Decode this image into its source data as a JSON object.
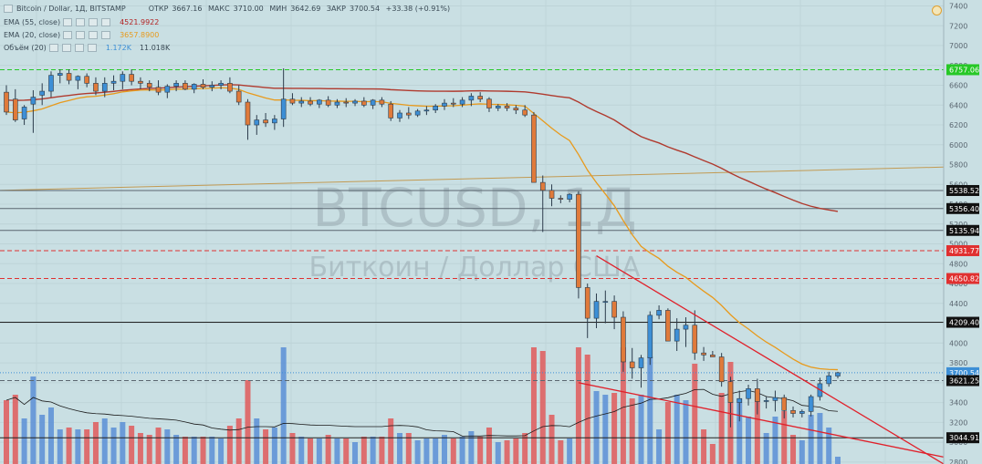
{
  "header": {
    "symbol": "Bitcoin / Dollar, 1Д, BITSTAMP",
    "open_label": "ОТКР",
    "open": "3667.16",
    "high_label": "МАКС",
    "high": "3710.00",
    "low_label": "МИН",
    "low": "3642.69",
    "close_label": "ЗАКР",
    "close": "3700.54",
    "change": "+33.38 (+0.91%)"
  },
  "indicators": [
    {
      "label": "EMA (55, close)",
      "value": "4521.9922",
      "color": "#b22222"
    },
    {
      "label": "EMA (20, close)",
      "value": "3657.8900",
      "color": "#e89a1c"
    },
    {
      "label": "Объём (20)",
      "value": "1.172K",
      "value2": "11.018K",
      "color": "#3d8fd6"
    }
  ],
  "watermark": {
    "ticker": "BTCUSD, 1Д",
    "name": "Биткоин / Доллар США"
  },
  "chart_data": {
    "type": "candlestick",
    "y_axis": {
      "ticks": [
        7400,
        7200,
        7000,
        6800,
        6600,
        6400,
        6200,
        6000,
        5800,
        5600,
        5400,
        5200,
        5000,
        4800,
        4600,
        4400,
        4200,
        4000,
        3800,
        3600,
        3400,
        3200,
        3000,
        2800
      ],
      "range": [
        2780,
        7460
      ]
    },
    "series": [
      {
        "name": "BTCUSD",
        "ohlc": [
          [
            6530,
            6600,
            6300,
            6330
          ],
          [
            6460,
            6560,
            6230,
            6250
          ],
          [
            6260,
            6400,
            6200,
            6380
          ],
          [
            6410,
            6550,
            6120,
            6480
          ],
          [
            6500,
            6620,
            6400,
            6540
          ],
          [
            6540,
            6740,
            6480,
            6700
          ],
          [
            6700,
            6760,
            6620,
            6720
          ],
          [
            6720,
            6760,
            6610,
            6650
          ],
          [
            6650,
            6700,
            6560,
            6690
          ],
          [
            6690,
            6720,
            6580,
            6620
          ],
          [
            6620,
            6680,
            6500,
            6540
          ],
          [
            6540,
            6680,
            6480,
            6620
          ],
          [
            6620,
            6700,
            6550,
            6640
          ],
          [
            6640,
            6740,
            6560,
            6710
          ],
          [
            6710,
            6760,
            6600,
            6640
          ],
          [
            6640,
            6680,
            6560,
            6620
          ],
          [
            6620,
            6650,
            6540,
            6580
          ],
          [
            6580,
            6650,
            6500,
            6530
          ],
          [
            6530,
            6610,
            6470,
            6590
          ],
          [
            6590,
            6650,
            6540,
            6620
          ],
          [
            6620,
            6650,
            6550,
            6560
          ],
          [
            6560,
            6620,
            6520,
            6610
          ],
          [
            6610,
            6660,
            6560,
            6580
          ],
          [
            6580,
            6640,
            6540,
            6600
          ],
          [
            6600,
            6650,
            6560,
            6620
          ],
          [
            6620,
            6680,
            6520,
            6540
          ],
          [
            6540,
            6600,
            6400,
            6430
          ],
          [
            6430,
            6460,
            6050,
            6200
          ],
          [
            6200,
            6300,
            6100,
            6250
          ],
          [
            6250,
            6320,
            6180,
            6220
          ],
          [
            6220,
            6300,
            6150,
            6260
          ],
          [
            6260,
            6770,
            6180,
            6460
          ],
          [
            6460,
            6520,
            6400,
            6420
          ],
          [
            6420,
            6480,
            6380,
            6440
          ],
          [
            6440,
            6480,
            6390,
            6410
          ],
          [
            6410,
            6460,
            6370,
            6450
          ],
          [
            6450,
            6490,
            6380,
            6400
          ],
          [
            6400,
            6460,
            6370,
            6430
          ],
          [
            6430,
            6470,
            6380,
            6420
          ],
          [
            6420,
            6460,
            6390,
            6440
          ],
          [
            6440,
            6480,
            6380,
            6400
          ],
          [
            6400,
            6460,
            6360,
            6450
          ],
          [
            6450,
            6480,
            6380,
            6410
          ],
          [
            6410,
            6440,
            6240,
            6270
          ],
          [
            6270,
            6350,
            6230,
            6320
          ],
          [
            6320,
            6380,
            6260,
            6300
          ],
          [
            6300,
            6360,
            6280,
            6340
          ],
          [
            6340,
            6390,
            6300,
            6350
          ],
          [
            6350,
            6410,
            6320,
            6390
          ],
          [
            6390,
            6460,
            6350,
            6420
          ],
          [
            6420,
            6470,
            6380,
            6410
          ],
          [
            6410,
            6480,
            6380,
            6450
          ],
          [
            6450,
            6520,
            6390,
            6490
          ],
          [
            6490,
            6530,
            6430,
            6460
          ],
          [
            6460,
            6480,
            6330,
            6370
          ],
          [
            6370,
            6410,
            6340,
            6390
          ],
          [
            6390,
            6420,
            6340,
            6370
          ],
          [
            6370,
            6400,
            6310,
            6350
          ],
          [
            6350,
            6400,
            6280,
            6300
          ],
          [
            6300,
            6330,
            5650,
            5620
          ],
          [
            5620,
            5690,
            5120,
            5540
          ],
          [
            5540,
            5600,
            5380,
            5460
          ],
          [
            5460,
            5490,
            5410,
            5450
          ],
          [
            5450,
            5510,
            5420,
            5500
          ],
          [
            5500,
            5530,
            4450,
            4560
          ],
          [
            4560,
            4600,
            4050,
            4250
          ],
          [
            4250,
            4500,
            4150,
            4420
          ],
          [
            4420,
            4530,
            4200,
            4420
          ],
          [
            4420,
            4480,
            4140,
            4260
          ],
          [
            4260,
            4320,
            3710,
            3810
          ],
          [
            3810,
            3950,
            3640,
            3750
          ],
          [
            3750,
            3880,
            3550,
            3850
          ],
          [
            3850,
            4320,
            3780,
            4280
          ],
          [
            4280,
            4380,
            4240,
            4330
          ],
          [
            4330,
            4350,
            4060,
            4020
          ],
          [
            4020,
            4250,
            3920,
            4140
          ],
          [
            4140,
            4260,
            3960,
            4180
          ],
          [
            4180,
            4330,
            3830,
            3900
          ],
          [
            3900,
            3960,
            3820,
            3880
          ],
          [
            3880,
            3920,
            3860,
            3860
          ],
          [
            3860,
            3900,
            3560,
            3610
          ],
          [
            3610,
            3660,
            3150,
            3400
          ],
          [
            3400,
            3520,
            3210,
            3440
          ],
          [
            3440,
            3580,
            3370,
            3540
          ],
          [
            3540,
            3640,
            3280,
            3410
          ],
          [
            3410,
            3460,
            3340,
            3420
          ],
          [
            3420,
            3520,
            3310,
            3450
          ],
          [
            3450,
            3480,
            3240,
            3320
          ],
          [
            3320,
            3360,
            3250,
            3290
          ],
          [
            3290,
            3330,
            3250,
            3310
          ],
          [
            3310,
            3480,
            3260,
            3460
          ],
          [
            3460,
            3650,
            3420,
            3590
          ],
          [
            3590,
            3710,
            3560,
            3670
          ],
          [
            3667.16,
            3710.0,
            3642.69,
            3700.54
          ]
        ]
      },
      {
        "name": "EMA (55, close)",
        "last": 4521.9922
      },
      {
        "name": "EMA (20, close)",
        "last": 3657.89
      },
      {
        "name": "Объём (20)",
        "last": 11018
      }
    ],
    "horizontal_levels": [
      {
        "value": 6757.06,
        "style": "dashed",
        "color": "#26c826"
      },
      {
        "value": 5538.52,
        "style": "solid",
        "color": "#5a6670"
      },
      {
        "value": 5356.4,
        "style": "solid",
        "color": "#5a6670"
      },
      {
        "value": 5135.94,
        "style": "solid",
        "color": "#5a6670"
      },
      {
        "value": 4931.77,
        "style": "dashed",
        "color": "#e03030"
      },
      {
        "value": 4650.82,
        "style": "dashed",
        "color": "#e03030"
      },
      {
        "value": 4209.4,
        "style": "solid",
        "color": "#222222"
      },
      {
        "value": 3700.54,
        "style": "dotted",
        "color": "#3d8fd6"
      },
      {
        "value": 3621.25,
        "style": "dashed",
        "color": "#5a6670"
      },
      {
        "value": 3044.91,
        "style": "solid",
        "color": "#222222"
      }
    ],
    "price_labels": [
      "6757.06",
      "5538.52",
      "5356.40",
      "5135.94",
      "4931.77",
      "4650.82",
      "4209.40",
      "3700.54",
      "3621.25",
      "3044.91"
    ],
    "grid": true
  }
}
